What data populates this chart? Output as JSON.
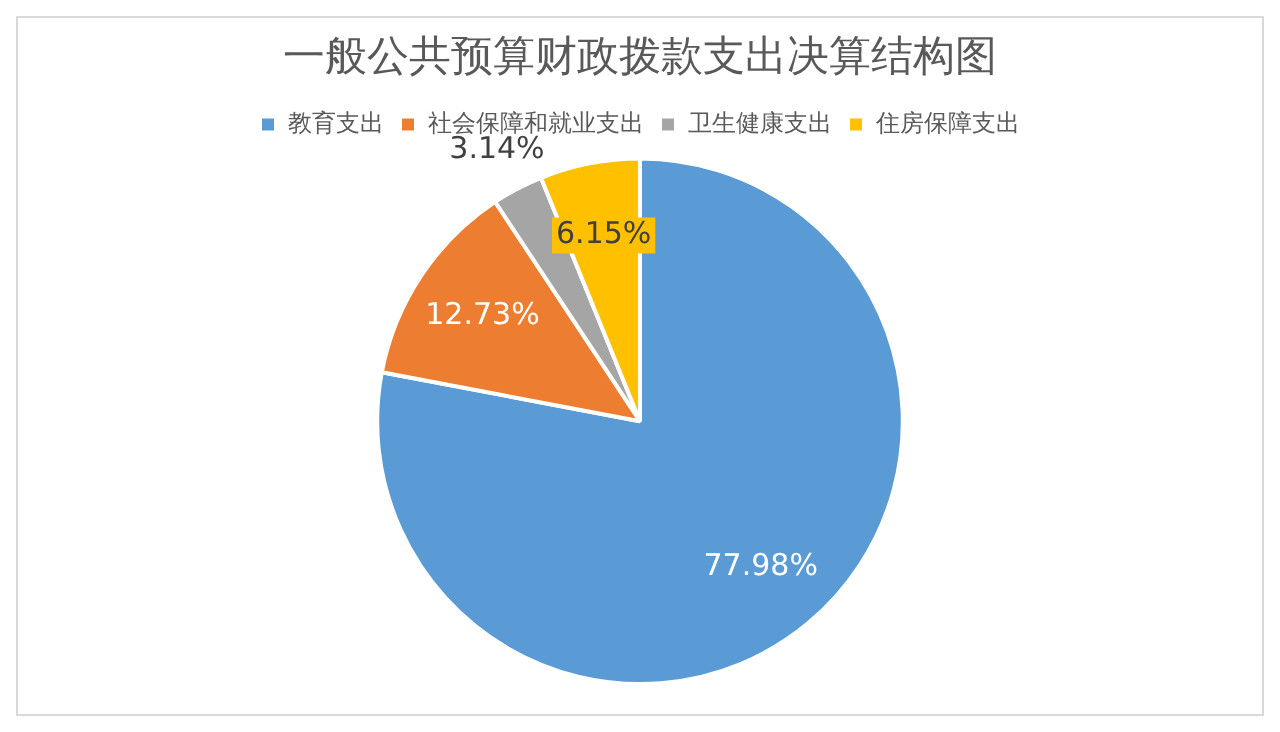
{
  "chart_data": {
    "type": "pie",
    "title": "一般公共预算财政拨款支出决算结构图",
    "categories": [
      "教育支出",
      "社会保障和就业支出",
      "卫生健康支出",
      "住房保障支出"
    ],
    "values": [
      77.98,
      12.73,
      3.14,
      6.15
    ],
    "colors": [
      "#5b9bd5",
      "#ed7d31",
      "#a5a5a5",
      "#ffc000"
    ],
    "value_labels": [
      "77.98%",
      "12.73%",
      "3.14%",
      "6.15%"
    ],
    "legend": "top"
  }
}
